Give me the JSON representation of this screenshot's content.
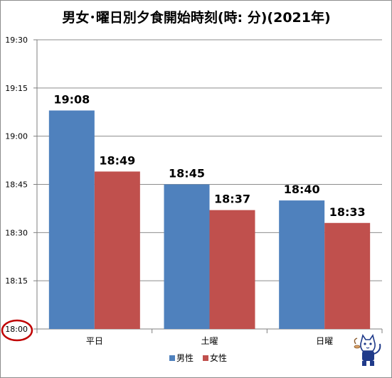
{
  "chart_data": {
    "type": "bar",
    "title": "男女･曜日別夕食開始時刻(時: 分)(2021年)",
    "xlabel": "",
    "ylabel": "",
    "categories": [
      "平日",
      "土曜",
      "日曜"
    ],
    "y_tick_labels": [
      "18:00",
      "18:15",
      "18:30",
      "18:45",
      "19:00",
      "19:15",
      "19:30"
    ],
    "ylim": [
      "18:00",
      "19:30"
    ],
    "series": [
      {
        "name": "男性",
        "values": [
          "19:08",
          "18:45",
          "18:40"
        ],
        "color": "#4F81BD"
      },
      {
        "name": "女性",
        "values": [
          "18:49",
          "18:37",
          "18:33"
        ],
        "color": "#C0504D"
      }
    ],
    "grid": true,
    "legend_position": "bottom",
    "highlight_circle_color": "#C00000",
    "mascot_icon": "cat-mascot-icon"
  }
}
